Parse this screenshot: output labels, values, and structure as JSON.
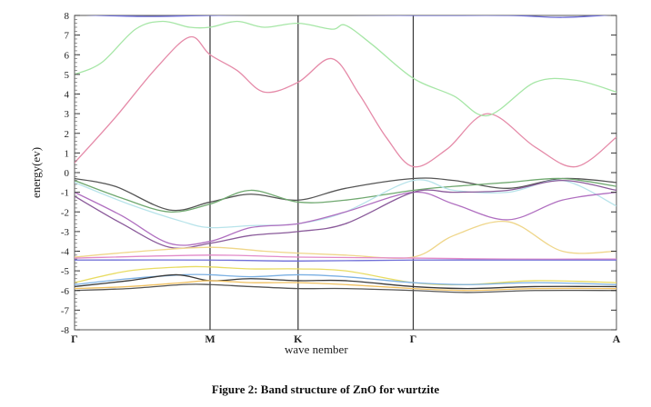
{
  "caption": "Figure 2: Band structure of ZnO for wurtzite",
  "chart_data": {
    "type": "line",
    "xlabel": "wave nember",
    "ylabel": "energy(ev)",
    "xlim": [
      0,
      4
    ],
    "ylim": [
      -8,
      8
    ],
    "grid": false,
    "kpoints": [
      {
        "label": "Γ",
        "x": 0
      },
      {
        "label": "M",
        "x": 1
      },
      {
        "label": "K",
        "x": 1.65
      },
      {
        "label": "Γ",
        "x": 2.5
      },
      {
        "label": "A",
        "x": 4
      }
    ],
    "y_ticks": [
      -8,
      -7,
      -6,
      -5,
      -4,
      -3,
      -2,
      -1,
      0,
      1,
      2,
      3,
      4,
      5,
      6,
      7,
      8
    ],
    "series": [
      {
        "color": "#e58aa8",
        "x": [
          0,
          0.3,
          0.6,
          0.85,
          1.0,
          1.2,
          1.4,
          1.65,
          1.9,
          2.1,
          2.3,
          2.5,
          2.75,
          3.05,
          3.4,
          3.7,
          4.0
        ],
        "y": [
          0.5,
          2.8,
          5.3,
          6.9,
          6.0,
          5.2,
          4.1,
          4.6,
          5.8,
          4.0,
          1.8,
          0.3,
          1.2,
          3.0,
          1.3,
          0.3,
          1.8
        ]
      },
      {
        "color": "#a6e6a6",
        "x": [
          0,
          0.2,
          0.45,
          0.65,
          0.85,
          1.0,
          1.2,
          1.4,
          1.65,
          1.9,
          2.0,
          2.2,
          2.5,
          2.8,
          3.05,
          3.4,
          3.7,
          4.0
        ],
        "y": [
          5.0,
          5.6,
          7.3,
          7.7,
          7.4,
          7.4,
          7.7,
          7.4,
          7.6,
          7.3,
          7.5,
          6.5,
          4.8,
          3.9,
          2.9,
          4.6,
          4.7,
          4.1
        ]
      },
      {
        "color": "#555555",
        "x": [
          0,
          0.3,
          0.7,
          1.0,
          1.3,
          1.65,
          2.0,
          2.5,
          2.8,
          3.2,
          3.6,
          4.0
        ],
        "y": [
          -0.3,
          -0.7,
          -1.9,
          -1.5,
          -1.1,
          -1.4,
          -0.8,
          -0.3,
          -0.4,
          -0.8,
          -0.3,
          -0.5
        ]
      },
      {
        "color": "#6fa86f",
        "x": [
          0,
          0.35,
          0.7,
          1.0,
          1.3,
          1.65,
          2.0,
          2.5,
          2.8,
          3.2,
          3.6,
          4.0
        ],
        "y": [
          -0.4,
          -1.3,
          -2.0,
          -1.6,
          -0.9,
          -1.5,
          -1.4,
          -0.9,
          -0.7,
          -0.5,
          -0.3,
          -0.7
        ]
      },
      {
        "color": "#b7e3ea",
        "x": [
          0,
          0.4,
          0.8,
          1.0,
          1.3,
          1.65,
          2.0,
          2.5,
          2.8,
          3.2,
          3.6,
          4.0
        ],
        "y": [
          -0.5,
          -1.6,
          -2.5,
          -2.8,
          -2.7,
          -2.6,
          -2.0,
          -0.4,
          -0.9,
          -1.0,
          -0.4,
          -1.7
        ]
      },
      {
        "color": "#b06fc0",
        "x": [
          0,
          0.35,
          0.7,
          1.0,
          1.3,
          1.65,
          2.0,
          2.5,
          2.8,
          3.2,
          3.6,
          4.0
        ],
        "y": [
          -1.0,
          -2.2,
          -3.6,
          -3.5,
          -2.8,
          -2.6,
          -2.0,
          -1.0,
          -1.6,
          -2.4,
          -1.4,
          -1.0
        ]
      },
      {
        "color": "#8a5a9a",
        "x": [
          0,
          0.35,
          0.7,
          1.0,
          1.3,
          1.65,
          2.0,
          2.5,
          2.8,
          3.2,
          3.6,
          4.0
        ],
        "y": [
          -1.2,
          -2.6,
          -3.8,
          -3.6,
          -3.2,
          -3.0,
          -2.6,
          -1.0,
          -1.0,
          -0.9,
          -0.4,
          -0.9
        ]
      },
      {
        "color": "#efd68a",
        "x": [
          0,
          0.5,
          1.0,
          1.4,
          1.65,
          2.0,
          2.5,
          2.8,
          3.2,
          3.6,
          4.0
        ],
        "y": [
          -4.3,
          -4.0,
          -3.8,
          -4.0,
          -4.1,
          -4.2,
          -4.3,
          -3.2,
          -2.5,
          -4.0,
          -4.0
        ]
      },
      {
        "color": "#e28ac9",
        "x": [
          0,
          1.0,
          1.65,
          2.5,
          3.2,
          4.0
        ],
        "y": [
          -4.35,
          -4.2,
          -4.3,
          -4.35,
          -4.4,
          -4.4
        ]
      },
      {
        "color": "#6e6ed8",
        "x": [
          0,
          1.0,
          1.65,
          2.5,
          3.2,
          4.0
        ],
        "y": [
          -4.45,
          -4.45,
          -4.5,
          -4.45,
          -4.45,
          -4.45
        ]
      },
      {
        "color": "#e8dc62",
        "x": [
          0,
          0.4,
          0.8,
          1.0,
          1.3,
          1.65,
          2.0,
          2.5,
          2.9,
          3.4,
          4.0
        ],
        "y": [
          -5.6,
          -5.0,
          -4.8,
          -4.8,
          -4.9,
          -4.9,
          -5.0,
          -5.6,
          -5.7,
          -5.5,
          -5.6
        ]
      },
      {
        "color": "#7bb0e3",
        "x": [
          0,
          0.4,
          0.8,
          1.0,
          1.3,
          1.65,
          2.0,
          2.5,
          2.9,
          3.4,
          4.0
        ],
        "y": [
          -5.7,
          -5.4,
          -5.2,
          -5.2,
          -5.3,
          -5.2,
          -5.3,
          -5.6,
          -5.7,
          -5.6,
          -5.7
        ]
      },
      {
        "color": "#3a3a3a",
        "x": [
          0,
          0.4,
          0.75,
          1.0,
          1.3,
          1.65,
          2.0,
          2.5,
          2.9,
          3.4,
          4.0
        ],
        "y": [
          -5.8,
          -5.5,
          -5.2,
          -5.5,
          -5.4,
          -5.5,
          -5.5,
          -5.8,
          -5.9,
          -5.8,
          -5.8
        ]
      },
      {
        "color": "#f0c060",
        "x": [
          0,
          0.4,
          0.8,
          1.0,
          1.3,
          1.65,
          2.0,
          2.5,
          2.9,
          3.4,
          4.0
        ],
        "y": [
          -5.9,
          -5.8,
          -5.6,
          -5.5,
          -5.6,
          -5.6,
          -5.7,
          -5.9,
          -6.0,
          -5.9,
          -5.9
        ]
      },
      {
        "color": "#555555",
        "x": [
          0,
          0.4,
          0.8,
          1.0,
          1.3,
          1.65,
          2.0,
          2.5,
          2.9,
          3.4,
          4.0
        ],
        "y": [
          -6.0,
          -5.9,
          -5.7,
          -5.7,
          -5.8,
          -5.9,
          -5.9,
          -6.0,
          -6.1,
          -6.0,
          -6.0
        ]
      },
      {
        "color": "#a6e6a6",
        "x": [
          0,
          1.0,
          1.65,
          2.5,
          4.0
        ],
        "y": [
          8.2,
          8.1,
          8.2,
          8.1,
          8.2
        ]
      },
      {
        "color": "#6e6ed8",
        "x": [
          0,
          0.5,
          1.0,
          1.65,
          2.5,
          3.2,
          3.6,
          4.0
        ],
        "y": [
          8.05,
          7.95,
          8.0,
          8.05,
          8.0,
          8.0,
          7.9,
          8.05
        ]
      }
    ]
  }
}
